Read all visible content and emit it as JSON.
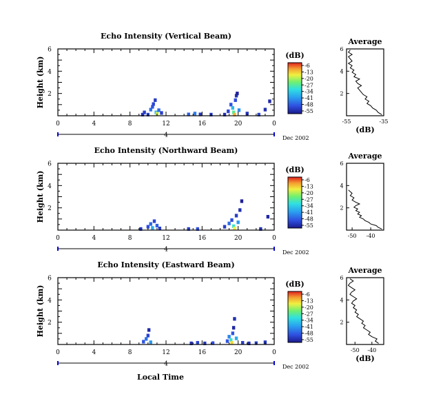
{
  "chart_data": [
    {
      "type": "heatmap",
      "title": "Echo Intensity (Vertical Beam)",
      "ylabel": "Height (km)",
      "x_ticks": [
        "0",
        "4",
        "8",
        "12",
        "16",
        "20",
        "0"
      ],
      "y_ticks": [
        "6",
        "4",
        "2"
      ],
      "date_label": "Dec 2002",
      "day_label": "4",
      "colorbar": {
        "unit": "(dB)",
        "ticks": [
          "-6",
          "-13",
          "-20",
          "-27",
          "-34",
          "-41",
          "-48",
          "-55"
        ]
      },
      "xlim": [
        0,
        24
      ],
      "ylim": [
        0,
        6
      ],
      "clim": [
        -55,
        -6
      ],
      "echo_cells": [
        {
          "x": 9.4,
          "y": 0.1,
          "v": -52
        },
        {
          "x": 9.6,
          "y": 0.3,
          "v": -50
        },
        {
          "x": 10.0,
          "y": 0.1,
          "v": -48
        },
        {
          "x": 10.3,
          "y": 0.55,
          "v": -44
        },
        {
          "x": 10.5,
          "y": 0.8,
          "v": -47
        },
        {
          "x": 10.6,
          "y": 1.05,
          "v": -49
        },
        {
          "x": 10.8,
          "y": 1.4,
          "v": -50
        },
        {
          "x": 10.9,
          "y": 0.3,
          "v": -38
        },
        {
          "x": 11.0,
          "y": 0.2,
          "v": -20
        },
        {
          "x": 11.2,
          "y": 0.5,
          "v": -45
        },
        {
          "x": 11.5,
          "y": 0.25,
          "v": -50
        },
        {
          "x": 14.5,
          "y": 0.12,
          "v": -46
        },
        {
          "x": 15.2,
          "y": 0.2,
          "v": -43
        },
        {
          "x": 15.8,
          "y": 0.12,
          "v": -51
        },
        {
          "x": 17.0,
          "y": 0.1,
          "v": -50
        },
        {
          "x": 18.5,
          "y": 0.1,
          "v": -52
        },
        {
          "x": 18.9,
          "y": 0.4,
          "v": -49
        },
        {
          "x": 19.2,
          "y": 1.0,
          "v": -47
        },
        {
          "x": 19.4,
          "y": 0.7,
          "v": -36
        },
        {
          "x": 19.5,
          "y": 0.3,
          "v": -27
        },
        {
          "x": 19.6,
          "y": 0.1,
          "v": -13
        },
        {
          "x": 19.7,
          "y": 1.4,
          "v": -48
        },
        {
          "x": 19.8,
          "y": 1.8,
          "v": -52
        },
        {
          "x": 19.9,
          "y": 2.0,
          "v": -54
        },
        {
          "x": 20.1,
          "y": 0.5,
          "v": -41
        },
        {
          "x": 21.0,
          "y": 0.2,
          "v": -51
        },
        {
          "x": 22.3,
          "y": 0.1,
          "v": -49
        },
        {
          "x": 23.0,
          "y": 0.55,
          "v": -52
        },
        {
          "x": 23.5,
          "y": 1.3,
          "v": -53
        }
      ],
      "profile": {
        "title": "Average",
        "xlabel": "(dB)",
        "x_ticks": [
          "-55",
          "-35"
        ],
        "y_ticks": [
          "6",
          "4",
          "2"
        ],
        "xlim": [
          -55,
          -35
        ],
        "ylim": [
          0,
          6
        ],
        "db": [
          -36,
          -38,
          -39,
          -41,
          -42,
          -44,
          -43,
          -45,
          -44,
          -46,
          -47,
          -48,
          -49,
          -47,
          -49,
          -50,
          -48,
          -51,
          -50,
          -52,
          -51,
          -53,
          -52,
          -54,
          -52,
          -53,
          -54,
          -52,
          -54,
          -53
        ],
        "height": [
          0.1,
          0.3,
          0.5,
          0.7,
          0.9,
          1.1,
          1.3,
          1.5,
          1.7,
          1.9,
          2.1,
          2.3,
          2.5,
          2.7,
          2.9,
          3.1,
          3.3,
          3.5,
          3.7,
          3.9,
          4.1,
          4.3,
          4.5,
          4.7,
          4.9,
          5.1,
          5.3,
          5.5,
          5.7,
          5.9
        ]
      }
    },
    {
      "type": "heatmap",
      "title": "Echo Intensity (Northward Beam)",
      "ylabel": "Height (km)",
      "x_ticks": [
        "0",
        "4",
        "8",
        "12",
        "16",
        "20",
        "0"
      ],
      "y_ticks": [
        "6",
        "4",
        "2"
      ],
      "date_label": "Dec 2002",
      "day_label": "4",
      "colorbar": {
        "unit": "(dB)",
        "ticks": [
          "-6",
          "-13",
          "-20",
          "-27",
          "-34",
          "-41",
          "-48",
          "-55"
        ]
      },
      "xlim": [
        0,
        24
      ],
      "ylim": [
        0,
        6
      ],
      "clim": [
        -55,
        -6
      ],
      "echo_cells": [
        {
          "x": 9.2,
          "y": 0.1,
          "v": -51
        },
        {
          "x": 10.0,
          "y": 0.3,
          "v": -48
        },
        {
          "x": 10.3,
          "y": 0.55,
          "v": -45
        },
        {
          "x": 10.5,
          "y": 0.2,
          "v": -38
        },
        {
          "x": 10.7,
          "y": 0.8,
          "v": -49
        },
        {
          "x": 11.0,
          "y": 0.4,
          "v": -46
        },
        {
          "x": 11.3,
          "y": 0.15,
          "v": -50
        },
        {
          "x": 14.5,
          "y": 0.1,
          "v": -50
        },
        {
          "x": 15.5,
          "y": 0.1,
          "v": -48
        },
        {
          "x": 18.5,
          "y": 0.3,
          "v": -50
        },
        {
          "x": 19.0,
          "y": 0.6,
          "v": -44
        },
        {
          "x": 19.3,
          "y": 0.9,
          "v": -48
        },
        {
          "x": 19.5,
          "y": 0.35,
          "v": -30
        },
        {
          "x": 19.6,
          "y": 0.15,
          "v": -18
        },
        {
          "x": 19.8,
          "y": 1.3,
          "v": -50
        },
        {
          "x": 20.0,
          "y": 0.7,
          "v": -40
        },
        {
          "x": 20.2,
          "y": 1.8,
          "v": -52
        },
        {
          "x": 20.4,
          "y": 2.6,
          "v": -54
        },
        {
          "x": 22.5,
          "y": 0.1,
          "v": -52
        },
        {
          "x": 23.3,
          "y": 1.2,
          "v": -53
        }
      ],
      "profile": {
        "title": "Average",
        "xlabel": "",
        "x_ticks": [
          "-50",
          "-40"
        ],
        "y_ticks": [
          "6",
          "4",
          "2"
        ],
        "xlim": [
          -53,
          -33
        ],
        "ylim": [
          0,
          6
        ],
        "db": [
          -34,
          -36,
          -37,
          -40,
          -41,
          -43,
          -44,
          -46,
          -45,
          -47,
          -46,
          -48,
          -47,
          -49,
          -48,
          -46,
          -48,
          -50,
          -49,
          -51,
          -50,
          -52
        ],
        "height": [
          0.1,
          0.25,
          0.4,
          0.55,
          0.7,
          0.85,
          1.0,
          1.15,
          1.3,
          1.45,
          1.6,
          1.75,
          1.9,
          2.05,
          2.2,
          2.35,
          2.5,
          2.7,
          2.9,
          3.1,
          3.3,
          3.6
        ]
      }
    },
    {
      "type": "heatmap",
      "title": "Echo Intensity (Eastward Beam)",
      "ylabel": "Height (km)",
      "xlabel": "Local Time",
      "x_ticks": [
        "0",
        "4",
        "8",
        "12",
        "16",
        "20",
        "0"
      ],
      "y_ticks": [
        "6",
        "4",
        "2"
      ],
      "date_label": "Dec 2002",
      "day_label": "4",
      "colorbar": {
        "unit": "(dB)",
        "ticks": [
          "-6",
          "-13",
          "-20",
          "-27",
          "-34",
          "-41",
          "-48",
          "-55"
        ]
      },
      "xlim": [
        0,
        24
      ],
      "ylim": [
        0,
        6
      ],
      "clim": [
        -55,
        -6
      ],
      "echo_cells": [
        {
          "x": 9.5,
          "y": 0.25,
          "v": -47
        },
        {
          "x": 9.8,
          "y": 0.5,
          "v": -44
        },
        {
          "x": 10.0,
          "y": 0.8,
          "v": -49
        },
        {
          "x": 10.1,
          "y": 1.3,
          "v": -53
        },
        {
          "x": 10.3,
          "y": 0.2,
          "v": -40
        },
        {
          "x": 14.8,
          "y": 0.1,
          "v": -52
        },
        {
          "x": 15.5,
          "y": 0.15,
          "v": -49
        },
        {
          "x": 16.3,
          "y": 0.1,
          "v": -51
        },
        {
          "x": 17.2,
          "y": 0.12,
          "v": -48
        },
        {
          "x": 18.8,
          "y": 0.3,
          "v": -47
        },
        {
          "x": 19.0,
          "y": 0.7,
          "v": -42
        },
        {
          "x": 19.2,
          "y": 0.4,
          "v": -30
        },
        {
          "x": 19.3,
          "y": 0.15,
          "v": -16
        },
        {
          "x": 19.4,
          "y": 1.0,
          "v": -47
        },
        {
          "x": 19.5,
          "y": 1.5,
          "v": -53
        },
        {
          "x": 19.6,
          "y": 2.3,
          "v": -52
        },
        {
          "x": 19.8,
          "y": 0.55,
          "v": -38
        },
        {
          "x": 20.5,
          "y": 0.15,
          "v": -50
        },
        {
          "x": 21.2,
          "y": 0.1,
          "v": -52
        },
        {
          "x": 22.0,
          "y": 0.12,
          "v": -49
        },
        {
          "x": 23.0,
          "y": 0.2,
          "v": -51
        }
      ],
      "profile": {
        "title": "Average",
        "xlabel": "(dB)",
        "x_ticks": [
          "-50",
          "-40"
        ],
        "y_ticks": [
          "6",
          "4",
          "2"
        ],
        "xlim": [
          -55,
          -33
        ],
        "ylim": [
          0,
          6
        ],
        "db": [
          -36,
          -38,
          -37,
          -40,
          -42,
          -41,
          -43,
          -45,
          -44,
          -46,
          -45,
          -47,
          -49,
          -48,
          -50,
          -49,
          -51,
          -50,
          -52,
          -51,
          -49,
          -51,
          -53,
          -52,
          -50,
          -52,
          -54,
          -53,
          -51,
          -53
        ],
        "height": [
          0.1,
          0.3,
          0.5,
          0.7,
          0.9,
          1.1,
          1.3,
          1.5,
          1.7,
          1.9,
          2.1,
          2.3,
          2.5,
          2.7,
          2.9,
          3.1,
          3.3,
          3.5,
          3.7,
          3.9,
          4.1,
          4.3,
          4.5,
          4.7,
          4.9,
          5.1,
          5.3,
          5.5,
          5.7,
          5.9
        ]
      }
    }
  ]
}
